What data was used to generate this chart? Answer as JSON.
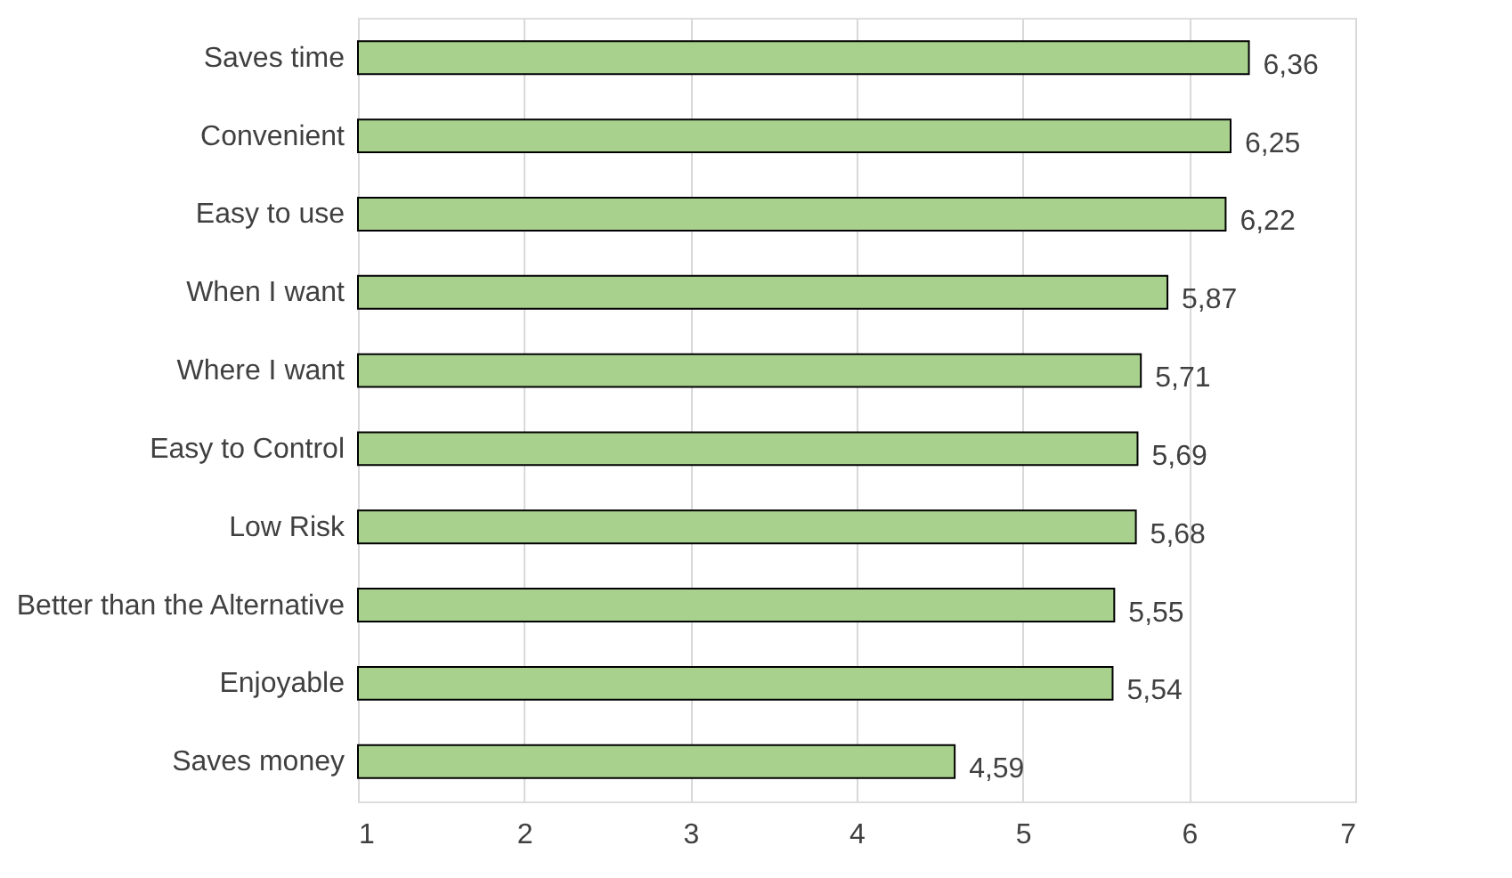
{
  "chart_data": {
    "type": "bar",
    "orientation": "horizontal",
    "categories": [
      "Saves time",
      "Convenient",
      "Easy to use",
      "When I want",
      "Where I want",
      "Easy to Control",
      "Low Risk",
      "Better than the Alternative",
      "Enjoyable",
      "Saves money"
    ],
    "values": [
      6.36,
      6.25,
      6.22,
      5.87,
      5.71,
      5.69,
      5.68,
      5.55,
      5.54,
      4.59
    ],
    "value_labels": [
      "6,36",
      "6,25",
      "6,22",
      "5,87",
      "5,71",
      "5,69",
      "5,68",
      "5,55",
      "5,54",
      "4,59"
    ],
    "color": "#a9d18e",
    "xlim": [
      1,
      7
    ],
    "xticks": [
      1,
      2,
      3,
      4,
      5,
      6,
      7
    ],
    "grid": "x"
  }
}
